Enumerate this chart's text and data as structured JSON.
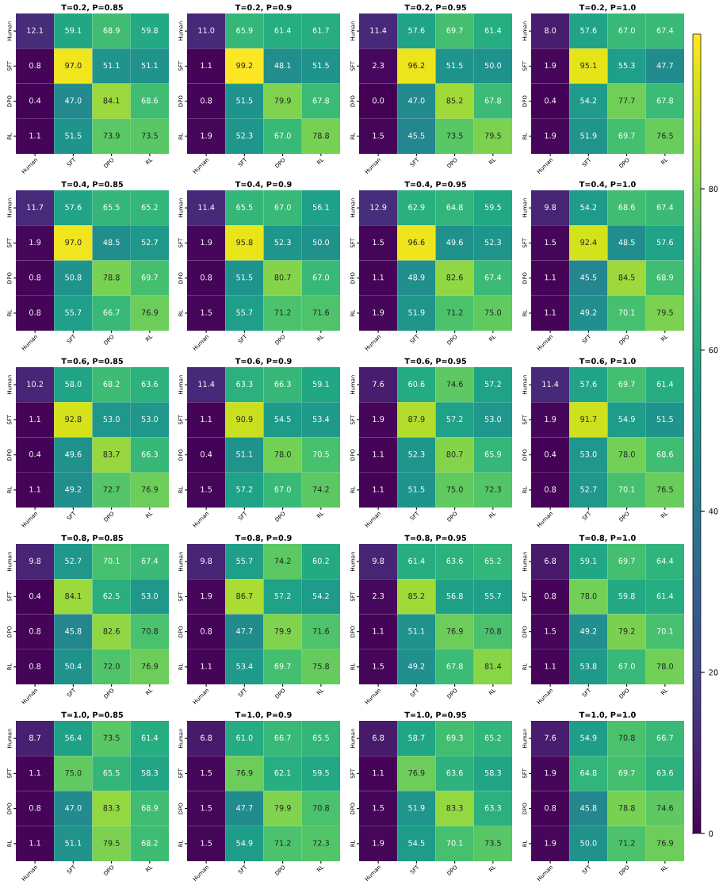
{
  "chart_data": [
    {
      "type": "heatmap",
      "title": "T=0.2, P=0.85",
      "categories": [
        "Human",
        "SFT",
        "DPO",
        "RL"
      ],
      "y_categories": [
        "Human",
        "SFT",
        "DPO",
        "RL"
      ],
      "cells": [
        [
          12.1,
          59.1,
          68.9,
          59.8
        ],
        [
          0.8,
          97.0,
          51.1,
          51.1
        ],
        [
          0.4,
          47.0,
          84.1,
          68.6
        ],
        [
          1.1,
          51.5,
          73.9,
          73.5
        ]
      ],
      "cell_labels": [
        [
          "12.1",
          "59.1",
          "68.9",
          "59.8"
        ],
        [
          "0.8",
          "97.0",
          "51.1",
          "51.1"
        ],
        [
          "0.4",
          "47.0",
          "84.1",
          "68.6"
        ],
        [
          "1.1",
          "51.5",
          "73.9",
          "73.5"
        ]
      ]
    },
    {
      "type": "heatmap",
      "title": "T=0.2, P=0.9",
      "categories": [
        "Human",
        "SFT",
        "DPO",
        "RL"
      ],
      "y_categories": [
        "Human",
        "SFT",
        "DPO",
        "RL"
      ],
      "cells": [
        [
          11.0,
          65.9,
          61.4,
          61.7
        ],
        [
          1.1,
          99.2,
          48.1,
          51.5
        ],
        [
          0.8,
          51.5,
          79.9,
          67.8
        ],
        [
          1.9,
          52.3,
          67.0,
          78.8
        ]
      ],
      "cell_labels": [
        [
          "11.0",
          "65.9",
          "61.4",
          "61.7"
        ],
        [
          "1.1",
          "99.2",
          "48.1",
          "51.5"
        ],
        [
          "0.8",
          "51.5",
          "79.9",
          "67.8"
        ],
        [
          "1.9",
          "52.3",
          "67.0",
          "78.8"
        ]
      ]
    },
    {
      "type": "heatmap",
      "title": "T=0.2, P=0.95",
      "categories": [
        "Human",
        "SFT",
        "DPO",
        "RL"
      ],
      "y_categories": [
        "Human",
        "SFT",
        "DPO",
        "RL"
      ],
      "cells": [
        [
          11.4,
          57.6,
          69.7,
          61.4
        ],
        [
          2.3,
          96.2,
          51.5,
          50.0
        ],
        [
          0.0,
          47.0,
          85.2,
          67.8
        ],
        [
          1.5,
          45.5,
          73.5,
          79.5
        ]
      ],
      "cell_labels": [
        [
          "11.4",
          "57.6",
          "69.7",
          "61.4"
        ],
        [
          "2.3",
          "96.2",
          "51.5",
          "50.0"
        ],
        [
          "0.0",
          "47.0",
          "85.2",
          "67.8"
        ],
        [
          "1.5",
          "45.5",
          "73.5",
          "79.5"
        ]
      ]
    },
    {
      "type": "heatmap",
      "title": "T=0.2, P=1.0",
      "categories": [
        "Human",
        "SFT",
        "DPO",
        "RL"
      ],
      "y_categories": [
        "Human",
        "SFT",
        "DPO",
        "RL"
      ],
      "cells": [
        [
          8.0,
          57.6,
          67.0,
          67.4
        ],
        [
          1.9,
          95.1,
          55.3,
          47.7
        ],
        [
          0.4,
          54.2,
          77.7,
          67.8
        ],
        [
          1.9,
          51.9,
          69.7,
          76.5
        ]
      ],
      "cell_labels": [
        [
          "8.0",
          "57.6",
          "67.0",
          "67.4"
        ],
        [
          "1.9",
          "95.1",
          "55.3",
          "47.7"
        ],
        [
          "0.4",
          "54.2",
          "77.7",
          "67.8"
        ],
        [
          "1.9",
          "51.9",
          "69.7",
          "76.5"
        ]
      ]
    },
    {
      "type": "heatmap",
      "title": "T=0.4, P=0.85",
      "categories": [
        "Human",
        "SFT",
        "DPO",
        "RL"
      ],
      "y_categories": [
        "Human",
        "SFT",
        "DPO",
        "RL"
      ],
      "cells": [
        [
          11.7,
          57.6,
          65.5,
          65.2
        ],
        [
          1.9,
          97.0,
          48.5,
          52.7
        ],
        [
          0.8,
          50.8,
          78.8,
          69.7
        ],
        [
          0.8,
          55.7,
          66.7,
          76.9
        ]
      ],
      "cell_labels": [
        [
          "11.7",
          "57.6",
          "65.5",
          "65.2"
        ],
        [
          "1.9",
          "97.0",
          "48.5",
          "52.7"
        ],
        [
          "0.8",
          "50.8",
          "78.8",
          "69.7"
        ],
        [
          "0.8",
          "55.7",
          "66.7",
          "76.9"
        ]
      ]
    },
    {
      "type": "heatmap",
      "title": "T=0.4, P=0.9",
      "categories": [
        "Human",
        "SFT",
        "DPO",
        "RL"
      ],
      "y_categories": [
        "Human",
        "SFT",
        "DPO",
        "RL"
      ],
      "cells": [
        [
          11.4,
          65.5,
          67.0,
          56.1
        ],
        [
          1.9,
          95.8,
          52.3,
          50.0
        ],
        [
          0.8,
          51.5,
          80.7,
          67.0
        ],
        [
          1.5,
          55.7,
          71.2,
          71.6
        ]
      ],
      "cell_labels": [
        [
          "11.4",
          "65.5",
          "67.0",
          "56.1"
        ],
        [
          "1.9",
          "95.8",
          "52.3",
          "50.0"
        ],
        [
          "0.8",
          "51.5",
          "80.7",
          "67.0"
        ],
        [
          "1.5",
          "55.7",
          "71.2",
          "71.6"
        ]
      ]
    },
    {
      "type": "heatmap",
      "title": "T=0.4, P=0.95",
      "categories": [
        "Human",
        "SFT",
        "DPO",
        "RL"
      ],
      "y_categories": [
        "Human",
        "SFT",
        "DPO",
        "RL"
      ],
      "cells": [
        [
          12.9,
          62.9,
          64.8,
          59.5
        ],
        [
          1.5,
          96.6,
          49.6,
          52.3
        ],
        [
          1.1,
          48.9,
          82.6,
          67.4
        ],
        [
          1.9,
          51.9,
          71.2,
          75.0
        ]
      ],
      "cell_labels": [
        [
          "12.9",
          "62.9",
          "64.8",
          "59.5"
        ],
        [
          "1.5",
          "96.6",
          "49.6",
          "52.3"
        ],
        [
          "1.1",
          "48.9",
          "82.6",
          "67.4"
        ],
        [
          "1.9",
          "51.9",
          "71.2",
          "75.0"
        ]
      ]
    },
    {
      "type": "heatmap",
      "title": "T=0.4, P=1.0",
      "categories": [
        "Human",
        "SFT",
        "DPO",
        "RL"
      ],
      "y_categories": [
        "Human",
        "SFT",
        "DPO",
        "RL"
      ],
      "cells": [
        [
          9.8,
          54.2,
          68.6,
          67.4
        ],
        [
          1.5,
          92.4,
          48.5,
          57.6
        ],
        [
          1.1,
          45.5,
          84.5,
          68.9
        ],
        [
          1.1,
          49.2,
          70.1,
          79.5
        ]
      ],
      "cell_labels": [
        [
          "9.8",
          "54.2",
          "68.6",
          "67.4"
        ],
        [
          "1.5",
          "92.4",
          "48.5",
          "57.6"
        ],
        [
          "1.1",
          "45.5",
          "84.5",
          "68.9"
        ],
        [
          "1.1",
          "49.2",
          "70.1",
          "79.5"
        ]
      ]
    },
    {
      "type": "heatmap",
      "title": "T=0.6, P=0.85",
      "categories": [
        "Human",
        "SFT",
        "DPO",
        "RL"
      ],
      "y_categories": [
        "Human",
        "SFT",
        "DPO",
        "RL"
      ],
      "cells": [
        [
          10.2,
          58.0,
          68.2,
          63.6
        ],
        [
          1.1,
          92.8,
          53.0,
          53.0
        ],
        [
          0.4,
          49.6,
          83.7,
          66.3
        ],
        [
          1.1,
          49.2,
          72.7,
          76.9
        ]
      ],
      "cell_labels": [
        [
          "10.2",
          "58.0",
          "68.2",
          "63.6"
        ],
        [
          "1.1",
          "92.8",
          "53.0",
          "53.0"
        ],
        [
          "0.4",
          "49.6",
          "83.7",
          "66.3"
        ],
        [
          "1.1",
          "49.2",
          "72.7",
          "76.9"
        ]
      ]
    },
    {
      "type": "heatmap",
      "title": "T=0.6, P=0.9",
      "categories": [
        "Human",
        "SFT",
        "DPO",
        "RL"
      ],
      "y_categories": [
        "Human",
        "SFT",
        "DPO",
        "RL"
      ],
      "cells": [
        [
          11.4,
          63.3,
          66.3,
          59.1
        ],
        [
          1.1,
          90.9,
          54.5,
          53.4
        ],
        [
          0.4,
          51.1,
          78.0,
          70.5
        ],
        [
          1.5,
          57.2,
          67.0,
          74.2
        ]
      ],
      "cell_labels": [
        [
          "11.4",
          "63.3",
          "66.3",
          "59.1"
        ],
        [
          "1.1",
          "90.9",
          "54.5",
          "53.4"
        ],
        [
          "0.4",
          "51.1",
          "78.0",
          "70.5"
        ],
        [
          "1.5",
          "57.2",
          "67.0",
          "74.2"
        ]
      ]
    },
    {
      "type": "heatmap",
      "title": "T=0.6, P=0.95",
      "categories": [
        "Human",
        "SFT",
        "DPO",
        "RL"
      ],
      "y_categories": [
        "Human",
        "SFT",
        "DPO",
        "RL"
      ],
      "cells": [
        [
          7.6,
          60.6,
          74.6,
          57.2
        ],
        [
          1.9,
          87.9,
          57.2,
          53.0
        ],
        [
          1.1,
          52.3,
          80.7,
          65.9
        ],
        [
          1.1,
          51.5,
          75.0,
          72.3
        ]
      ],
      "cell_labels": [
        [
          "7.6",
          "60.6",
          "74.6",
          "57.2"
        ],
        [
          "1.9",
          "87.9",
          "57.2",
          "53.0"
        ],
        [
          "1.1",
          "52.3",
          "80.7",
          "65.9"
        ],
        [
          "1.1",
          "51.5",
          "75.0",
          "72.3"
        ]
      ]
    },
    {
      "type": "heatmap",
      "title": "T=0.6, P=1.0",
      "categories": [
        "Human",
        "SFT",
        "DPO",
        "RL"
      ],
      "y_categories": [
        "Human",
        "SFT",
        "DPO",
        "RL"
      ],
      "cells": [
        [
          11.4,
          57.6,
          69.7,
          61.4
        ],
        [
          1.9,
          91.7,
          54.9,
          51.5
        ],
        [
          0.4,
          53.0,
          78.0,
          68.6
        ],
        [
          0.8,
          52.7,
          70.1,
          76.5
        ]
      ],
      "cell_labels": [
        [
          "11.4",
          "57.6",
          "69.7",
          "61.4"
        ],
        [
          "1.9",
          "91.7",
          "54.9",
          "51.5"
        ],
        [
          "0.4",
          "53.0",
          "78.0",
          "68.6"
        ],
        [
          "0.8",
          "52.7",
          "70.1",
          "76.5"
        ]
      ]
    },
    {
      "type": "heatmap",
      "title": "T=0.8, P=0.85",
      "categories": [
        "Human",
        "SFT",
        "DPO",
        "RL"
      ],
      "y_categories": [
        "Human",
        "SFT",
        "DPO",
        "RL"
      ],
      "cells": [
        [
          9.8,
          52.7,
          70.1,
          67.4
        ],
        [
          0.4,
          84.1,
          62.5,
          53.0
        ],
        [
          0.8,
          45.8,
          82.6,
          70.8
        ],
        [
          0.8,
          50.4,
          72.0,
          76.9
        ]
      ],
      "cell_labels": [
        [
          "9.8",
          "52.7",
          "70.1",
          "67.4"
        ],
        [
          "0.4",
          "84.1",
          "62.5",
          "53.0"
        ],
        [
          "0.8",
          "45.8",
          "82.6",
          "70.8"
        ],
        [
          "0.8",
          "50.4",
          "72.0",
          "76.9"
        ]
      ]
    },
    {
      "type": "heatmap",
      "title": "T=0.8, P=0.9",
      "categories": [
        "Human",
        "SFT",
        "DPO",
        "RL"
      ],
      "y_categories": [
        "Human",
        "SFT",
        "DPO",
        "RL"
      ],
      "cells": [
        [
          9.8,
          55.7,
          74.2,
          60.2
        ],
        [
          1.9,
          86.7,
          57.2,
          54.2
        ],
        [
          0.8,
          47.7,
          79.9,
          71.6
        ],
        [
          1.1,
          53.4,
          69.7,
          75.8
        ]
      ],
      "cell_labels": [
        [
          "9.8",
          "55.7",
          "74.2",
          "60.2"
        ],
        [
          "1.9",
          "86.7",
          "57.2",
          "54.2"
        ],
        [
          "0.8",
          "47.7",
          "79.9",
          "71.6"
        ],
        [
          "1.1",
          "53.4",
          "69.7",
          "75.8"
        ]
      ]
    },
    {
      "type": "heatmap",
      "title": "T=0.8, P=0.95",
      "categories": [
        "Human",
        "SFT",
        "DPO",
        "RL"
      ],
      "y_categories": [
        "Human",
        "SFT",
        "DPO",
        "RL"
      ],
      "cells": [
        [
          9.8,
          61.4,
          63.6,
          65.2
        ],
        [
          2.3,
          85.2,
          56.8,
          55.7
        ],
        [
          1.1,
          51.1,
          76.9,
          70.8
        ],
        [
          1.5,
          49.2,
          67.8,
          81.4
        ]
      ],
      "cell_labels": [
        [
          "9.8",
          "61.4",
          "63.6",
          "65.2"
        ],
        [
          "2.3",
          "85.2",
          "56.8",
          "55.7"
        ],
        [
          "1.1",
          "51.1",
          "76.9",
          "70.8"
        ],
        [
          "1.5",
          "49.2",
          "67.8",
          "81.4"
        ]
      ]
    },
    {
      "type": "heatmap",
      "title": "T=0.8, P=1.0",
      "categories": [
        "Human",
        "SFT",
        "DPO",
        "RL"
      ],
      "y_categories": [
        "Human",
        "SFT",
        "DPO",
        "RL"
      ],
      "cells": [
        [
          6.8,
          59.1,
          69.7,
          64.4
        ],
        [
          0.8,
          78.0,
          59.8,
          61.4
        ],
        [
          1.5,
          49.2,
          79.2,
          70.1
        ],
        [
          1.1,
          53.8,
          67.0,
          78.0
        ]
      ],
      "cell_labels": [
        [
          "6.8",
          "59.1",
          "69.7",
          "64.4"
        ],
        [
          "0.8",
          "78.0",
          "59.8",
          "61.4"
        ],
        [
          "1.5",
          "49.2",
          "79.2",
          "70.1"
        ],
        [
          "1.1",
          "53.8",
          "67.0",
          "78.0"
        ]
      ]
    },
    {
      "type": "heatmap",
      "title": "T=1.0, P=0.85",
      "categories": [
        "Human",
        "SFT",
        "DPO",
        "RL"
      ],
      "y_categories": [
        "Human",
        "SFT",
        "DPO",
        "RL"
      ],
      "cells": [
        [
          8.7,
          56.4,
          73.5,
          61.4
        ],
        [
          1.1,
          75.0,
          65.5,
          58.3
        ],
        [
          0.8,
          47.0,
          83.3,
          68.9
        ],
        [
          1.1,
          51.1,
          79.5,
          68.2
        ]
      ],
      "cell_labels": [
        [
          "8.7",
          "56.4",
          "73.5",
          "61.4"
        ],
        [
          "1.1",
          "75.0",
          "65.5",
          "58.3"
        ],
        [
          "0.8",
          "47.0",
          "83.3",
          "68.9"
        ],
        [
          "1.1",
          "51.1",
          "79.5",
          "68.2"
        ]
      ]
    },
    {
      "type": "heatmap",
      "title": "T=1.0, P=0.9",
      "categories": [
        "Human",
        "SFT",
        "DPO",
        "RL"
      ],
      "y_categories": [
        "Human",
        "SFT",
        "DPO",
        "RL"
      ],
      "cells": [
        [
          6.8,
          61.0,
          66.7,
          65.5
        ],
        [
          1.5,
          76.9,
          62.1,
          59.5
        ],
        [
          1.5,
          47.7,
          79.9,
          70.8
        ],
        [
          1.5,
          54.9,
          71.2,
          72.3
        ]
      ],
      "cell_labels": [
        [
          "6.8",
          "61.0",
          "66.7",
          "65.5"
        ],
        [
          "1.5",
          "76.9",
          "62.1",
          "59.5"
        ],
        [
          "1.5",
          "47.7",
          "79.9",
          "70.8"
        ],
        [
          "1.5",
          "54.9",
          "71.2",
          "72.3"
        ]
      ]
    },
    {
      "type": "heatmap",
      "title": "T=1.0, P=0.95",
      "categories": [
        "Human",
        "SFT",
        "DPO",
        "RL"
      ],
      "y_categories": [
        "Human",
        "SFT",
        "DPO",
        "RL"
      ],
      "cells": [
        [
          6.8,
          58.7,
          69.3,
          65.2
        ],
        [
          1.1,
          76.9,
          63.6,
          58.3
        ],
        [
          1.5,
          51.9,
          83.3,
          63.3
        ],
        [
          1.9,
          54.5,
          70.1,
          73.5
        ]
      ],
      "cell_labels": [
        [
          "6.8",
          "58.7",
          "69.3",
          "65.2"
        ],
        [
          "1.1",
          "76.9",
          "63.6",
          "58.3"
        ],
        [
          "1.5",
          "51.9",
          "83.3",
          "63.3"
        ],
        [
          "1.9",
          "54.5",
          "70.1",
          "73.5"
        ]
      ]
    },
    {
      "type": "heatmap",
      "title": "T=1.0, P=1.0",
      "categories": [
        "Human",
        "SFT",
        "DPO",
        "RL"
      ],
      "y_categories": [
        "Human",
        "SFT",
        "DPO",
        "RL"
      ],
      "clim": [
        0,
        99.2
      ],
      "cticks": [
        0,
        20,
        40,
        60,
        80
      ],
      "cells": [
        [
          7.6,
          54.9,
          70.8,
          66.7
        ],
        [
          1.9,
          64.8,
          69.7,
          63.6
        ],
        [
          0.8,
          45.8,
          78.8,
          74.6
        ],
        [
          1.9,
          50.0,
          71.2,
          76.9
        ]
      ],
      "cell_labels": [
        [
          "7.6",
          "54.9",
          "70.8",
          "66.7"
        ],
        [
          "1.9",
          "64.8",
          "69.7",
          "63.6"
        ],
        [
          "0.8",
          "45.8",
          "78.8",
          "74.6"
        ],
        [
          "1.9",
          "50.0",
          "71.2",
          "76.9"
        ]
      ]
    }
  ]
}
